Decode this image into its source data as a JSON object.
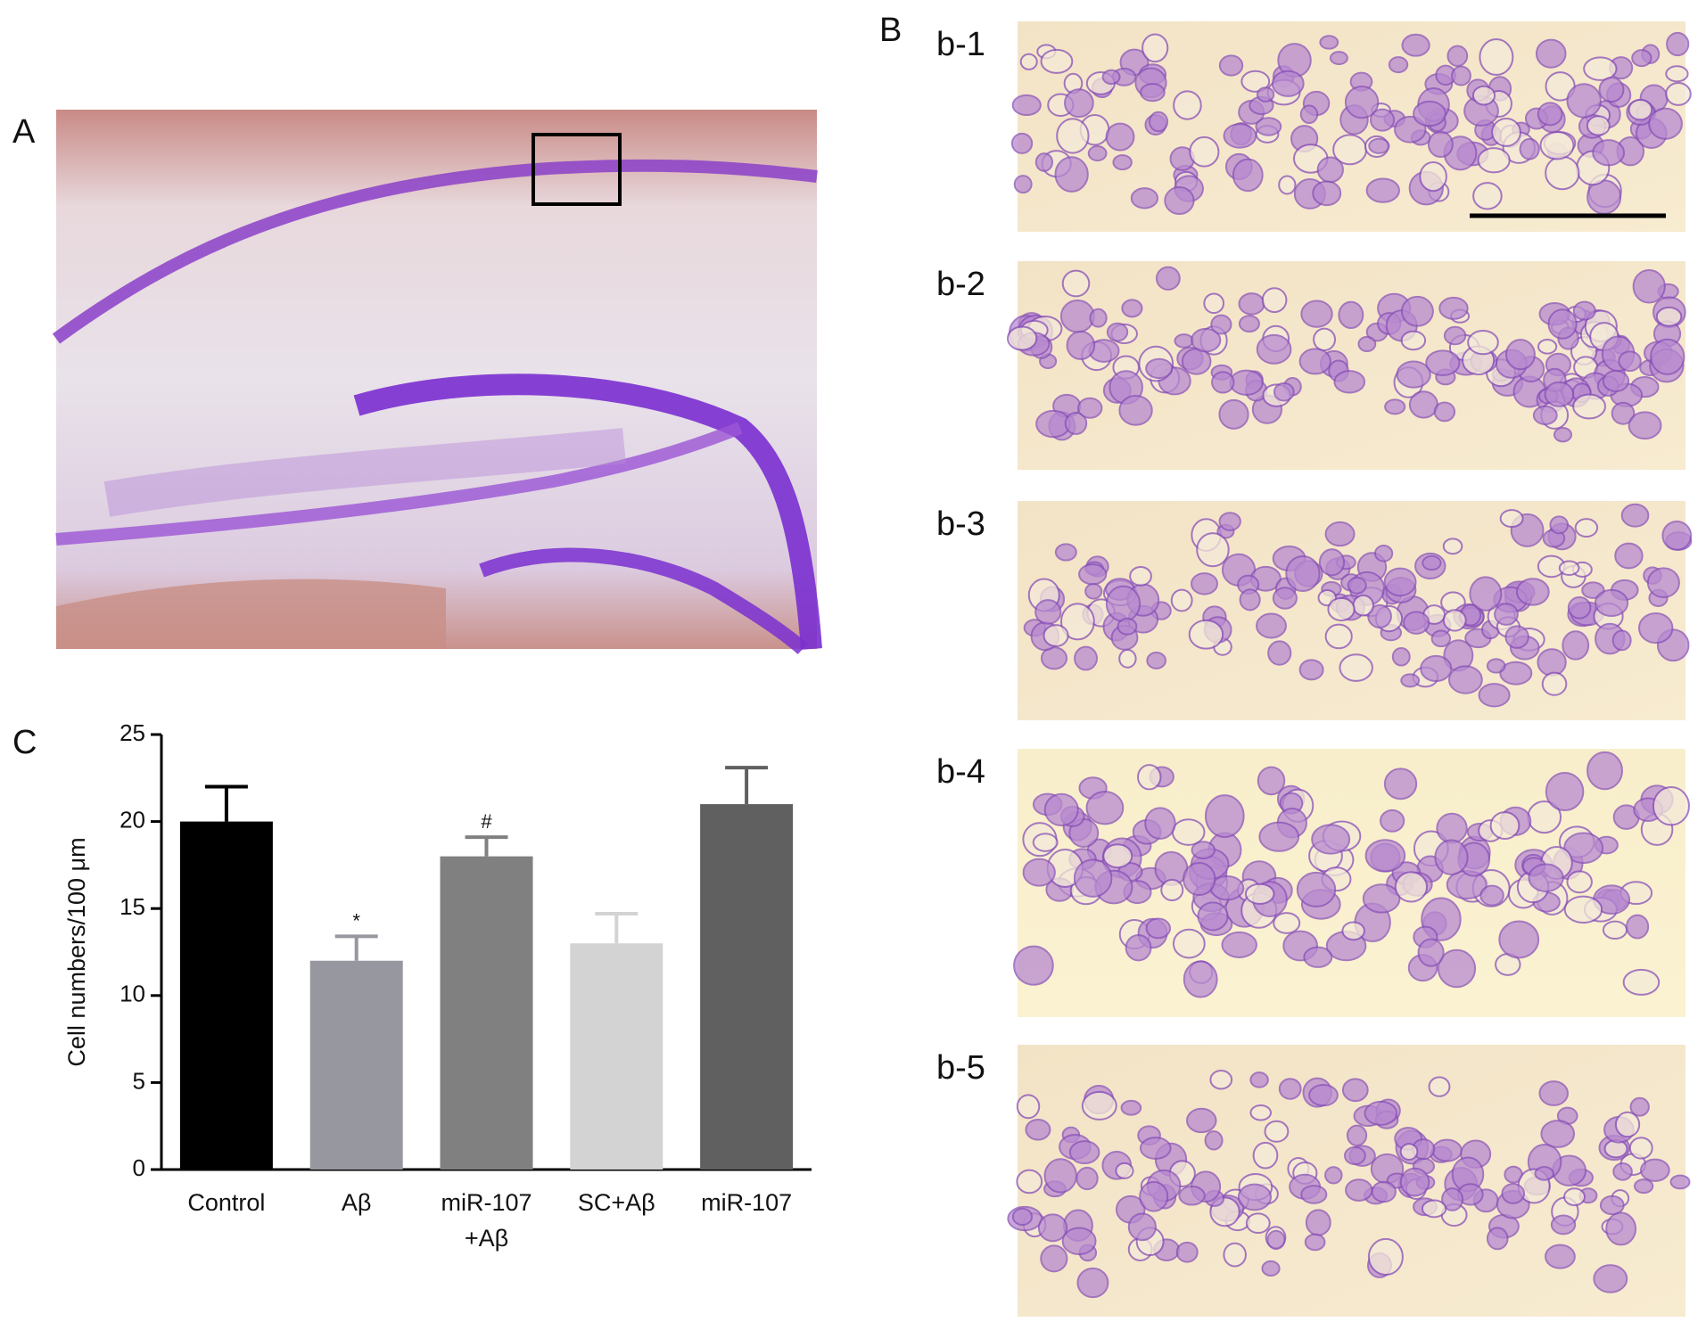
{
  "panels": {
    "a": "A",
    "b": "B",
    "c": "C",
    "b_images": [
      "b-1",
      "b-2",
      "b-3",
      "b-4",
      "b-5"
    ]
  },
  "chart_data": {
    "type": "bar",
    "ylabel": "Cell numbers/100 μm",
    "categories": [
      "Control",
      "Aβ",
      "miR-107 +Aβ",
      "SC+Aβ",
      "miR-107"
    ],
    "values": [
      20,
      12,
      18,
      13,
      21
    ],
    "errors": [
      2,
      1.4,
      1.1,
      1.7,
      2.1
    ],
    "significance": [
      null,
      "*",
      "#",
      null,
      null
    ],
    "colors": [
      "#000000",
      "#97979f",
      "#808080",
      "#d3d3d3",
      "#606060"
    ],
    "ylim": [
      0,
      25
    ],
    "yticks": [
      0,
      5,
      10,
      15,
      20,
      25
    ]
  }
}
